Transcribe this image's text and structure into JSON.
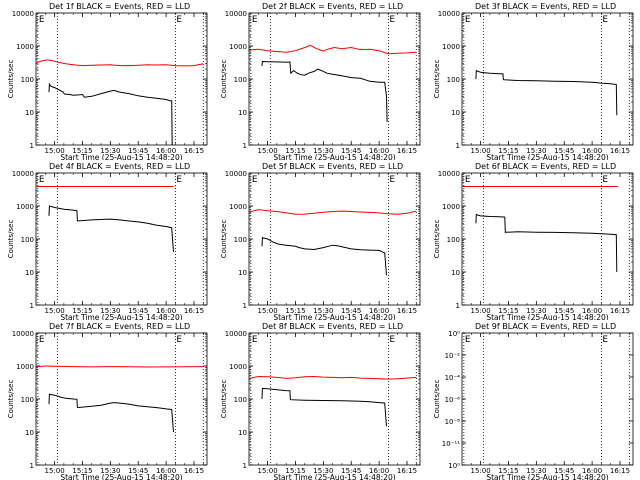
{
  "page": {
    "width": 640,
    "height": 480
  },
  "colors": {
    "events": "#000000",
    "lld": "#ff0000",
    "axes": "#000000",
    "background": "#ffffff"
  },
  "shared": {
    "ylabel": "Counts/sec",
    "xlabel": "Start Time (25-Aug-15 14:48:20)",
    "xticks": [
      "15:00",
      "15:15",
      "15:30",
      "15:45",
      "16:00",
      "16:15"
    ],
    "xtick_values_min": [
      0,
      15,
      30,
      45,
      60,
      75
    ],
    "xlim_min": [
      -10,
      82
    ],
    "ylim": [
      1,
      10000
    ],
    "yscale": "log",
    "yticks": [
      "1",
      "10",
      "100",
      "1000",
      "10000"
    ],
    "ytick_values": [
      1,
      10,
      100,
      1000,
      10000
    ],
    "marker_label": "E",
    "dotted_lines_min": [
      -9,
      1.5,
      65,
      80
    ]
  },
  "chart_data": [
    {
      "id": "det1f",
      "type": "line",
      "title": "Det 1f BLACK = Events, RED = LLD",
      "series": [
        {
          "color": "#000000",
          "points": [
            [
              -3,
              40
            ],
            [
              -2.8,
              70
            ],
            [
              -2,
              60
            ],
            [
              0,
              55
            ],
            [
              2,
              48
            ],
            [
              4,
              42
            ],
            [
              4.7,
              40
            ],
            [
              5.2,
              35
            ],
            [
              8,
              34
            ],
            [
              10,
              32
            ],
            [
              13,
              33
            ],
            [
              15,
              34
            ],
            [
              16,
              28
            ],
            [
              20,
              30
            ],
            [
              25,
              36
            ],
            [
              30,
              43
            ],
            [
              32,
              45
            ],
            [
              35,
              40
            ],
            [
              40,
              36
            ],
            [
              45,
              31
            ],
            [
              50,
              28
            ],
            [
              55,
              26
            ],
            [
              60,
              24
            ],
            [
              62,
              22
            ],
            [
              63,
              22
            ],
            [
              63.3,
              1
            ]
          ]
        },
        {
          "color": "#ff0000",
          "points": [
            [
              -10,
              310
            ],
            [
              -7,
              350
            ],
            [
              -4,
              380
            ],
            [
              -1,
              360
            ],
            [
              2,
              320
            ],
            [
              6,
              290
            ],
            [
              10,
              270
            ],
            [
              15,
              255
            ],
            [
              20,
              260
            ],
            [
              25,
              265
            ],
            [
              30,
              270
            ],
            [
              35,
              255
            ],
            [
              40,
              255
            ],
            [
              45,
              260
            ],
            [
              50,
              270
            ],
            [
              55,
              265
            ],
            [
              60,
              270
            ],
            [
              65,
              255
            ],
            [
              70,
              250
            ],
            [
              75,
              255
            ],
            [
              80,
              290
            ]
          ]
        }
      ]
    },
    {
      "id": "det2f",
      "type": "line",
      "title": "Det 2f BLACK = Events, RED = LLD",
      "series": [
        {
          "color": "#000000",
          "points": [
            [
              -3,
              250
            ],
            [
              -2.8,
              340
            ],
            [
              0,
              335
            ],
            [
              5,
              330
            ],
            [
              10,
              320
            ],
            [
              12,
              330
            ],
            [
              12.5,
              150
            ],
            [
              14,
              180
            ],
            [
              16,
              150
            ],
            [
              18,
              135
            ],
            [
              20,
              130
            ],
            [
              22,
              150
            ],
            [
              25,
              170
            ],
            [
              27,
              200
            ],
            [
              29,
              180
            ],
            [
              32,
              150
            ],
            [
              35,
              140
            ],
            [
              40,
              125
            ],
            [
              45,
              110
            ],
            [
              50,
              105
            ],
            [
              55,
              85
            ],
            [
              60,
              80
            ],
            [
              63,
              80
            ],
            [
              64,
              30
            ],
            [
              64.3,
              5
            ]
          ]
        },
        {
          "color": "#ff0000",
          "points": [
            [
              -10,
              750
            ],
            [
              -5,
              800
            ],
            [
              0,
              720
            ],
            [
              5,
              680
            ],
            [
              10,
              650
            ],
            [
              15,
              720
            ],
            [
              20,
              900
            ],
            [
              23,
              1050
            ],
            [
              26,
              850
            ],
            [
              30,
              700
            ],
            [
              33,
              820
            ],
            [
              36,
              900
            ],
            [
              40,
              820
            ],
            [
              45,
              900
            ],
            [
              50,
              780
            ],
            [
              55,
              800
            ],
            [
              60,
              720
            ],
            [
              65,
              580
            ],
            [
              70,
              600
            ],
            [
              75,
              620
            ],
            [
              80,
              650
            ]
          ]
        }
      ]
    },
    {
      "id": "det3f",
      "type": "line",
      "title": "Det 3f BLACK = Events, RED = LLD",
      "series": [
        {
          "color": "#000000",
          "points": [
            [
              -2.5,
              100
            ],
            [
              -2.3,
              180
            ],
            [
              0,
              160
            ],
            [
              5,
              150
            ],
            [
              10,
              145
            ],
            [
              12,
              145
            ],
            [
              12.3,
              95
            ],
            [
              20,
              90
            ],
            [
              30,
              88
            ],
            [
              40,
              86
            ],
            [
              50,
              84
            ],
            [
              60,
              80
            ],
            [
              65,
              75
            ],
            [
              70,
              72
            ],
            [
              73,
              68
            ],
            [
              73.3,
              8
            ]
          ]
        }
      ]
    },
    {
      "id": "det4f",
      "type": "line",
      "title": "Det 4f BLACK = Events, RED = LLD",
      "series": [
        {
          "color": "#000000",
          "points": [
            [
              -3,
              500
            ],
            [
              -2.8,
              1000
            ],
            [
              0,
              900
            ],
            [
              5,
              800
            ],
            [
              10,
              750
            ],
            [
              12,
              720
            ],
            [
              12.3,
              350
            ],
            [
              20,
              380
            ],
            [
              30,
              400
            ],
            [
              35,
              380
            ],
            [
              40,
              350
            ],
            [
              45,
              330
            ],
            [
              50,
              300
            ],
            [
              55,
              260
            ],
            [
              60,
              240
            ],
            [
              63,
              220
            ],
            [
              64,
              40
            ]
          ]
        },
        {
          "color": "#ff0000",
          "points": [
            [
              -10,
              3900
            ],
            [
              64,
              3900
            ]
          ]
        }
      ]
    },
    {
      "id": "det5f",
      "type": "line",
      "title": "Det 5f BLACK = Events, RED = LLD",
      "series": [
        {
          "color": "#000000",
          "points": [
            [
              -3,
              60
            ],
            [
              -2.8,
              110
            ],
            [
              0,
              100
            ],
            [
              3,
              80
            ],
            [
              6,
              70
            ],
            [
              10,
              65
            ],
            [
              15,
              60
            ],
            [
              17,
              55
            ],
            [
              20,
              50
            ],
            [
              25,
              48
            ],
            [
              30,
              55
            ],
            [
              35,
              65
            ],
            [
              38,
              62
            ],
            [
              42,
              55
            ],
            [
              45,
              50
            ],
            [
              50,
              47
            ],
            [
              55,
              46
            ],
            [
              60,
              45
            ],
            [
              62,
              40
            ],
            [
              63,
              38
            ],
            [
              64,
              8
            ]
          ]
        },
        {
          "color": "#ff0000",
          "points": [
            [
              -10,
              650
            ],
            [
              -5,
              780
            ],
            [
              0,
              720
            ],
            [
              5,
              680
            ],
            [
              10,
              620
            ],
            [
              15,
              560
            ],
            [
              20,
              570
            ],
            [
              25,
              600
            ],
            [
              30,
              650
            ],
            [
              35,
              680
            ],
            [
              40,
              700
            ],
            [
              45,
              680
            ],
            [
              50,
              660
            ],
            [
              55,
              640
            ],
            [
              60,
              620
            ],
            [
              65,
              580
            ],
            [
              70,
              560
            ],
            [
              75,
              600
            ],
            [
              80,
              700
            ]
          ]
        }
      ]
    },
    {
      "id": "det6f",
      "type": "line",
      "title": "Det 6f BLACK = Events, RED = LLD",
      "series": [
        {
          "color": "#000000",
          "points": [
            [
              -2.5,
              300
            ],
            [
              -2.3,
              550
            ],
            [
              0,
              500
            ],
            [
              5,
              480
            ],
            [
              10,
              470
            ],
            [
              13,
              460
            ],
            [
              13.3,
              160
            ],
            [
              20,
              165
            ],
            [
              30,
              160
            ],
            [
              40,
              158
            ],
            [
              50,
              155
            ],
            [
              60,
              150
            ],
            [
              65,
              145
            ],
            [
              70,
              140
            ],
            [
              73,
              135
            ],
            [
              73.3,
              10
            ]
          ]
        },
        {
          "color": "#ff0000",
          "points": [
            [
              -10,
              3900
            ],
            [
              74,
              3900
            ]
          ]
        }
      ]
    },
    {
      "id": "det7f",
      "type": "line",
      "title": "Det 7f BLACK = Events, RED = LLD",
      "series": [
        {
          "color": "#000000",
          "points": [
            [
              -3,
              70
            ],
            [
              -2.8,
              140
            ],
            [
              0,
              130
            ],
            [
              3,
              115
            ],
            [
              6,
              105
            ],
            [
              10,
              100
            ],
            [
              12,
              98
            ],
            [
              12.3,
              55
            ],
            [
              20,
              60
            ],
            [
              25,
              65
            ],
            [
              30,
              75
            ],
            [
              32,
              78
            ],
            [
              35,
              75
            ],
            [
              40,
              70
            ],
            [
              45,
              62
            ],
            [
              50,
              58
            ],
            [
              55,
              55
            ],
            [
              60,
              50
            ],
            [
              63,
              48
            ],
            [
              64,
              10
            ]
          ]
        },
        {
          "color": "#ff0000",
          "points": [
            [
              -10,
              950
            ],
            [
              -5,
              1000
            ],
            [
              0,
              980
            ],
            [
              10,
              960
            ],
            [
              20,
              940
            ],
            [
              30,
              960
            ],
            [
              40,
              950
            ],
            [
              50,
              930
            ],
            [
              60,
              940
            ],
            [
              70,
              950
            ],
            [
              80,
              960
            ]
          ]
        }
      ]
    },
    {
      "id": "det8f",
      "type": "line",
      "title": "Det 8f BLACK = Events, RED = LLD",
      "series": [
        {
          "color": "#000000",
          "points": [
            [
              -3,
              100
            ],
            [
              -2.8,
              210
            ],
            [
              0,
              205
            ],
            [
              5,
              190
            ],
            [
              10,
              180
            ],
            [
              12,
              178
            ],
            [
              12.3,
              95
            ],
            [
              20,
              92
            ],
            [
              30,
              90
            ],
            [
              40,
              88
            ],
            [
              50,
              85
            ],
            [
              55,
              82
            ],
            [
              60,
              78
            ],
            [
              63,
              75
            ],
            [
              64,
              15
            ]
          ]
        },
        {
          "color": "#ff0000",
          "points": [
            [
              -10,
              420
            ],
            [
              -5,
              480
            ],
            [
              0,
              470
            ],
            [
              5,
              450
            ],
            [
              10,
              420
            ],
            [
              15,
              440
            ],
            [
              20,
              470
            ],
            [
              25,
              480
            ],
            [
              30,
              460
            ],
            [
              35,
              450
            ],
            [
              40,
              440
            ],
            [
              45,
              450
            ],
            [
              50,
              430
            ],
            [
              55,
              420
            ],
            [
              60,
              410
            ],
            [
              65,
              400
            ],
            [
              70,
              410
            ],
            [
              75,
              430
            ],
            [
              80,
              450
            ]
          ]
        }
      ]
    },
    {
      "id": "det9f",
      "type": "line",
      "title": "Det 9f BLACK = Events, RED = LLD",
      "yticks": [
        "10⁰",
        "10⁻¹¹",
        "10⁻⁸",
        "10⁻⁶",
        "10⁻⁴",
        "10⁻²",
        "10⁰"
      ],
      "series": []
    }
  ]
}
